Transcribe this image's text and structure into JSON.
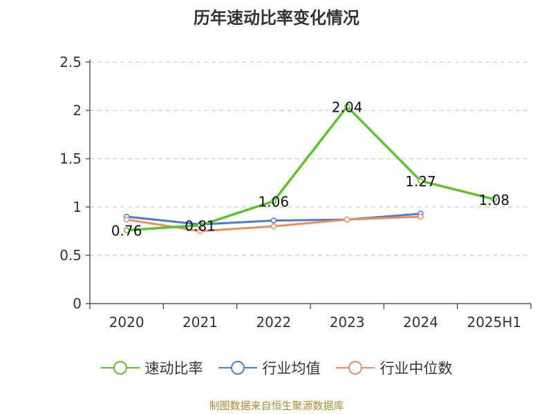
{
  "title": "历年速动比率变化情况",
  "source_note": "制图数据来自恒生聚源数据库",
  "chart_data": {
    "type": "line",
    "categories": [
      "2020",
      "2021",
      "2022",
      "2023",
      "2024",
      "2025H1"
    ],
    "ylim": [
      0,
      2.5
    ],
    "yticks": [
      "0",
      "0.5",
      "1",
      "1.5",
      "2",
      "2.5"
    ],
    "grid": true,
    "legend_position": "bottom",
    "series": [
      {
        "name": "速动比率",
        "color": "#5ac626",
        "values": [
          0.76,
          0.81,
          1.06,
          2.04,
          1.27,
          1.08
        ],
        "labels": [
          "0.76",
          "0.81",
          "1.06",
          "2.04",
          "1.27",
          "1.08"
        ]
      },
      {
        "name": "行业均值",
        "color": "#4a7bd5",
        "values": [
          0.9,
          0.82,
          0.86,
          0.87,
          0.93,
          null
        ]
      },
      {
        "name": "行业中位数",
        "color": "#f28c5a",
        "values": [
          0.87,
          0.75,
          0.8,
          0.87,
          0.9,
          null
        ]
      }
    ]
  }
}
